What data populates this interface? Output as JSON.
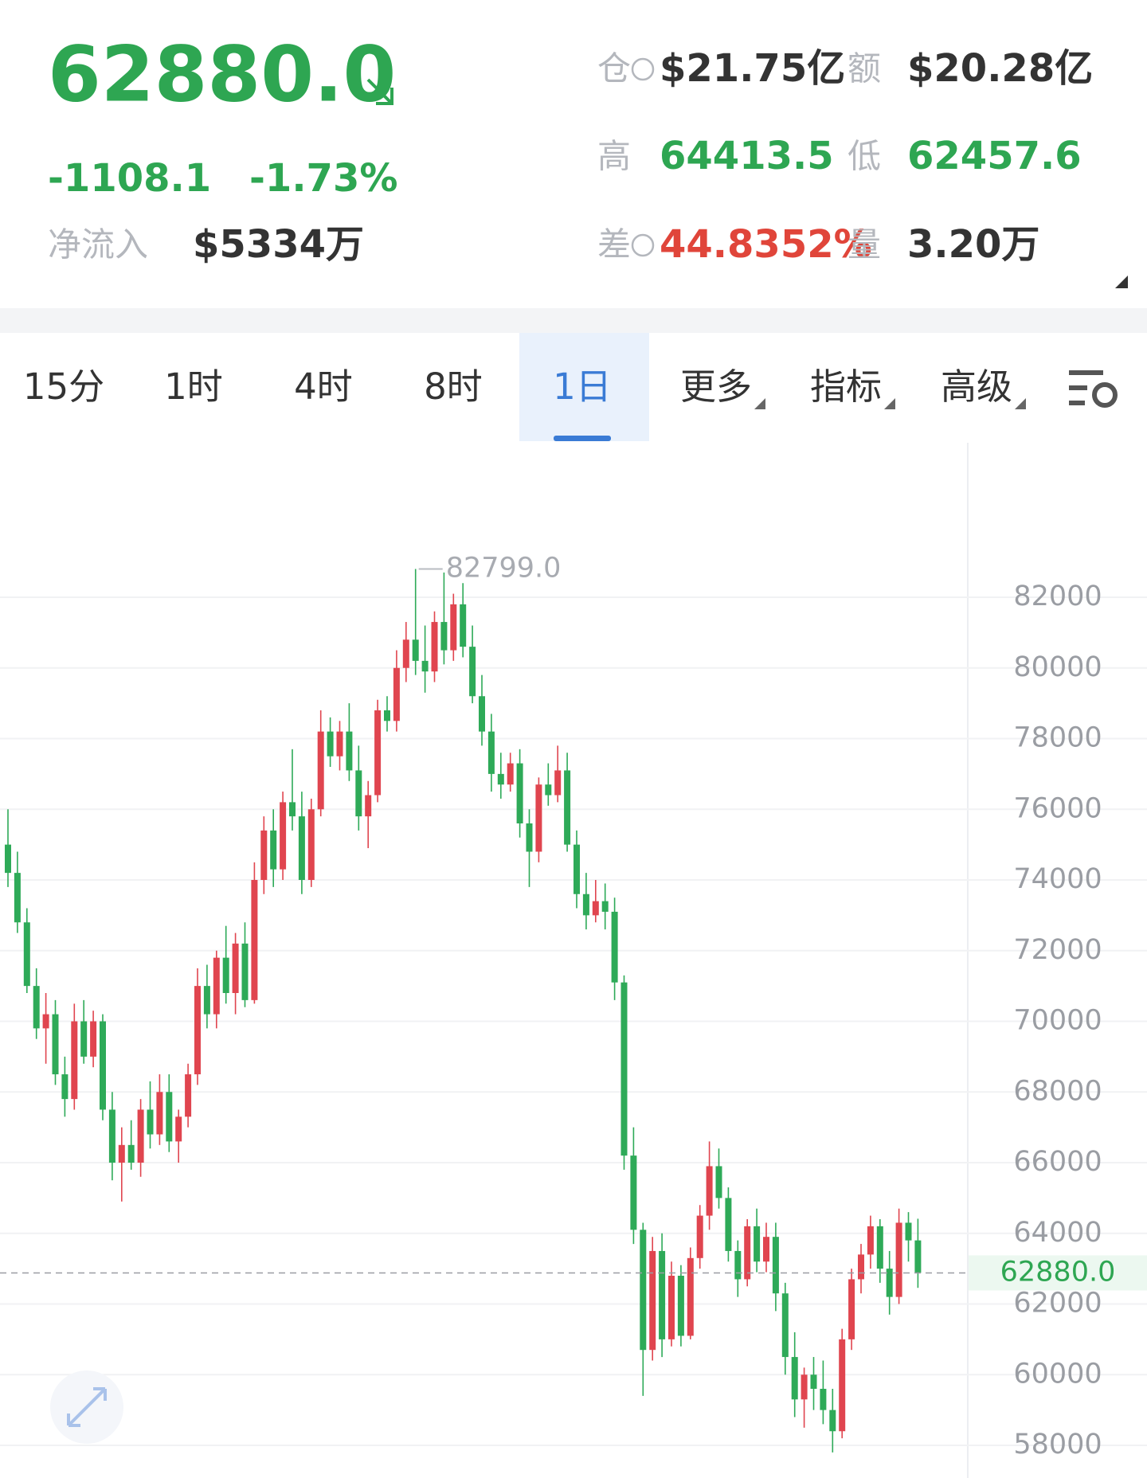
{
  "header": {
    "price": "62880.0",
    "change": "-1108.1",
    "change_pct": "-1.73%",
    "net_inflow_label": "净流入",
    "net_inflow": "$5334万",
    "open_interest_label": "仓",
    "open_interest": "$21.75亿",
    "turnover_label": "额",
    "turnover": "$20.28亿",
    "high_label": "高",
    "high": "64413.5",
    "low_label": "低",
    "low": "62457.6",
    "spread_label": "差",
    "spread": "44.8352%",
    "volume_label": "量",
    "volume": "3.20万"
  },
  "tabs": {
    "selected": 4,
    "items": [
      {
        "label": "15分"
      },
      {
        "label": "1时"
      },
      {
        "label": "4时"
      },
      {
        "label": "8时"
      },
      {
        "label": "1日"
      },
      {
        "label": "更多",
        "dropdown": true
      },
      {
        "label": "指标",
        "dropdown": true
      },
      {
        "label": "高级",
        "dropdown": true
      }
    ]
  },
  "chart_data": {
    "type": "candlestick",
    "up_color": "#e0454f",
    "down_color": "#2eaa58",
    "ylim": [
      57200,
      86000
    ],
    "yticks": [
      58000,
      60000,
      62000,
      64000,
      66000,
      68000,
      70000,
      72000,
      74000,
      76000,
      78000,
      80000,
      82000
    ],
    "grid": true,
    "last_price": {
      "value": 62880,
      "label": "62880.0"
    },
    "high_annotation": {
      "value": 82799,
      "label": "82799.0"
    },
    "ohlc": [
      [
        75000,
        76000,
        73800,
        74200
      ],
      [
        74200,
        74800,
        72500,
        72800
      ],
      [
        72800,
        73200,
        70800,
        71000
      ],
      [
        71000,
        71500,
        69500,
        69800
      ],
      [
        69800,
        70800,
        68800,
        70200
      ],
      [
        70200,
        70600,
        68200,
        68500
      ],
      [
        68500,
        69000,
        67300,
        67800
      ],
      [
        67800,
        70500,
        67500,
        70000
      ],
      [
        70000,
        70600,
        68800,
        69000
      ],
      [
        69000,
        70300,
        68700,
        70000
      ],
      [
        70000,
        70200,
        67200,
        67500
      ],
      [
        67500,
        68000,
        65500,
        66000
      ],
      [
        66000,
        67000,
        64900,
        66500
      ],
      [
        66500,
        67200,
        65800,
        66000
      ],
      [
        66000,
        67800,
        65600,
        67500
      ],
      [
        67500,
        68300,
        66400,
        66800
      ],
      [
        66800,
        68500,
        66500,
        68000
      ],
      [
        68000,
        68500,
        66300,
        66600
      ],
      [
        66600,
        67500,
        66000,
        67300
      ],
      [
        67300,
        68800,
        67000,
        68500
      ],
      [
        68500,
        71500,
        68200,
        71000
      ],
      [
        71000,
        71600,
        69800,
        70200
      ],
      [
        70200,
        72000,
        69800,
        71800
      ],
      [
        71800,
        72700,
        70500,
        70800
      ],
      [
        70800,
        72500,
        70200,
        72200
      ],
      [
        72200,
        72800,
        70400,
        70600
      ],
      [
        70600,
        74500,
        70500,
        74000
      ],
      [
        74000,
        75800,
        73600,
        75400
      ],
      [
        75400,
        76000,
        73800,
        74300
      ],
      [
        74300,
        76500,
        74000,
        76200
      ],
      [
        76200,
        77700,
        75400,
        75800
      ],
      [
        75800,
        76500,
        73600,
        74000
      ],
      [
        74000,
        76300,
        73800,
        76000
      ],
      [
        76000,
        78800,
        75800,
        78200
      ],
      [
        78200,
        78600,
        77200,
        77500
      ],
      [
        77500,
        78500,
        77100,
        78200
      ],
      [
        78200,
        79000,
        76800,
        77100
      ],
      [
        77100,
        77800,
        75400,
        75800
      ],
      [
        75800,
        76800,
        74900,
        76400
      ],
      [
        76400,
        79100,
        76200,
        78800
      ],
      [
        78800,
        79200,
        78200,
        78500
      ],
      [
        78500,
        80500,
        78200,
        80000
      ],
      [
        80000,
        81300,
        79600,
        80800
      ],
      [
        80800,
        82799,
        79800,
        80200
      ],
      [
        80200,
        81200,
        79300,
        79900
      ],
      [
        79900,
        81600,
        79600,
        81300
      ],
      [
        81300,
        82700,
        80100,
        80500
      ],
      [
        80500,
        82100,
        80200,
        81800
      ],
      [
        81800,
        82400,
        80300,
        80600
      ],
      [
        80600,
        81200,
        79000,
        79200
      ],
      [
        79200,
        79800,
        77800,
        78200
      ],
      [
        78200,
        78700,
        76500,
        77000
      ],
      [
        77000,
        77600,
        76300,
        76700
      ],
      [
        76700,
        77600,
        76500,
        77300
      ],
      [
        77300,
        77700,
        75200,
        75600
      ],
      [
        75600,
        76000,
        73800,
        74800
      ],
      [
        74800,
        76900,
        74500,
        76700
      ],
      [
        76700,
        77300,
        76100,
        76400
      ],
      [
        76400,
        77800,
        76200,
        77100
      ],
      [
        77100,
        77600,
        74800,
        75000
      ],
      [
        75000,
        75400,
        73200,
        73600
      ],
      [
        73600,
        74200,
        72600,
        73000
      ],
      [
        73000,
        74000,
        72800,
        73400
      ],
      [
        73400,
        73900,
        72600,
        73100
      ],
      [
        73100,
        73500,
        70600,
        71100
      ],
      [
        71100,
        71300,
        65800,
        66200
      ],
      [
        66200,
        67000,
        63700,
        64100
      ],
      [
        64100,
        64300,
        59400,
        60700
      ],
      [
        60700,
        63900,
        60400,
        63500
      ],
      [
        63500,
        64000,
        60500,
        61000
      ],
      [
        61000,
        63200,
        60800,
        62800
      ],
      [
        62800,
        63100,
        60800,
        61100
      ],
      [
        61100,
        63600,
        61000,
        63300
      ],
      [
        63300,
        64800,
        63000,
        64500
      ],
      [
        64500,
        66600,
        64100,
        65900
      ],
      [
        65900,
        66400,
        64700,
        65000
      ],
      [
        65000,
        65300,
        63200,
        63500
      ],
      [
        63500,
        63800,
        62200,
        62700
      ],
      [
        62700,
        64400,
        62500,
        64200
      ],
      [
        64200,
        64700,
        62900,
        63200
      ],
      [
        63200,
        64300,
        62900,
        63900
      ],
      [
        63900,
        64300,
        61800,
        62300
      ],
      [
        62300,
        62600,
        60000,
        60500
      ],
      [
        60500,
        61200,
        58800,
        59300
      ],
      [
        59300,
        60200,
        58500,
        60000
      ],
      [
        60000,
        60500,
        59000,
        59600
      ],
      [
        59600,
        60400,
        58600,
        59000
      ],
      [
        59000,
        59600,
        57800,
        58400
      ],
      [
        58400,
        61300,
        58200,
        61000
      ],
      [
        61000,
        63000,
        60700,
        62700
      ],
      [
        62700,
        63700,
        62300,
        63400
      ],
      [
        63400,
        64500,
        63000,
        64200
      ],
      [
        64200,
        64400,
        62600,
        63000
      ],
      [
        63000,
        63500,
        61700,
        62200
      ],
      [
        62200,
        64700,
        62000,
        64300
      ],
      [
        64300,
        64600,
        63200,
        63800
      ],
      [
        63800,
        64413,
        62457,
        62880
      ]
    ]
  }
}
